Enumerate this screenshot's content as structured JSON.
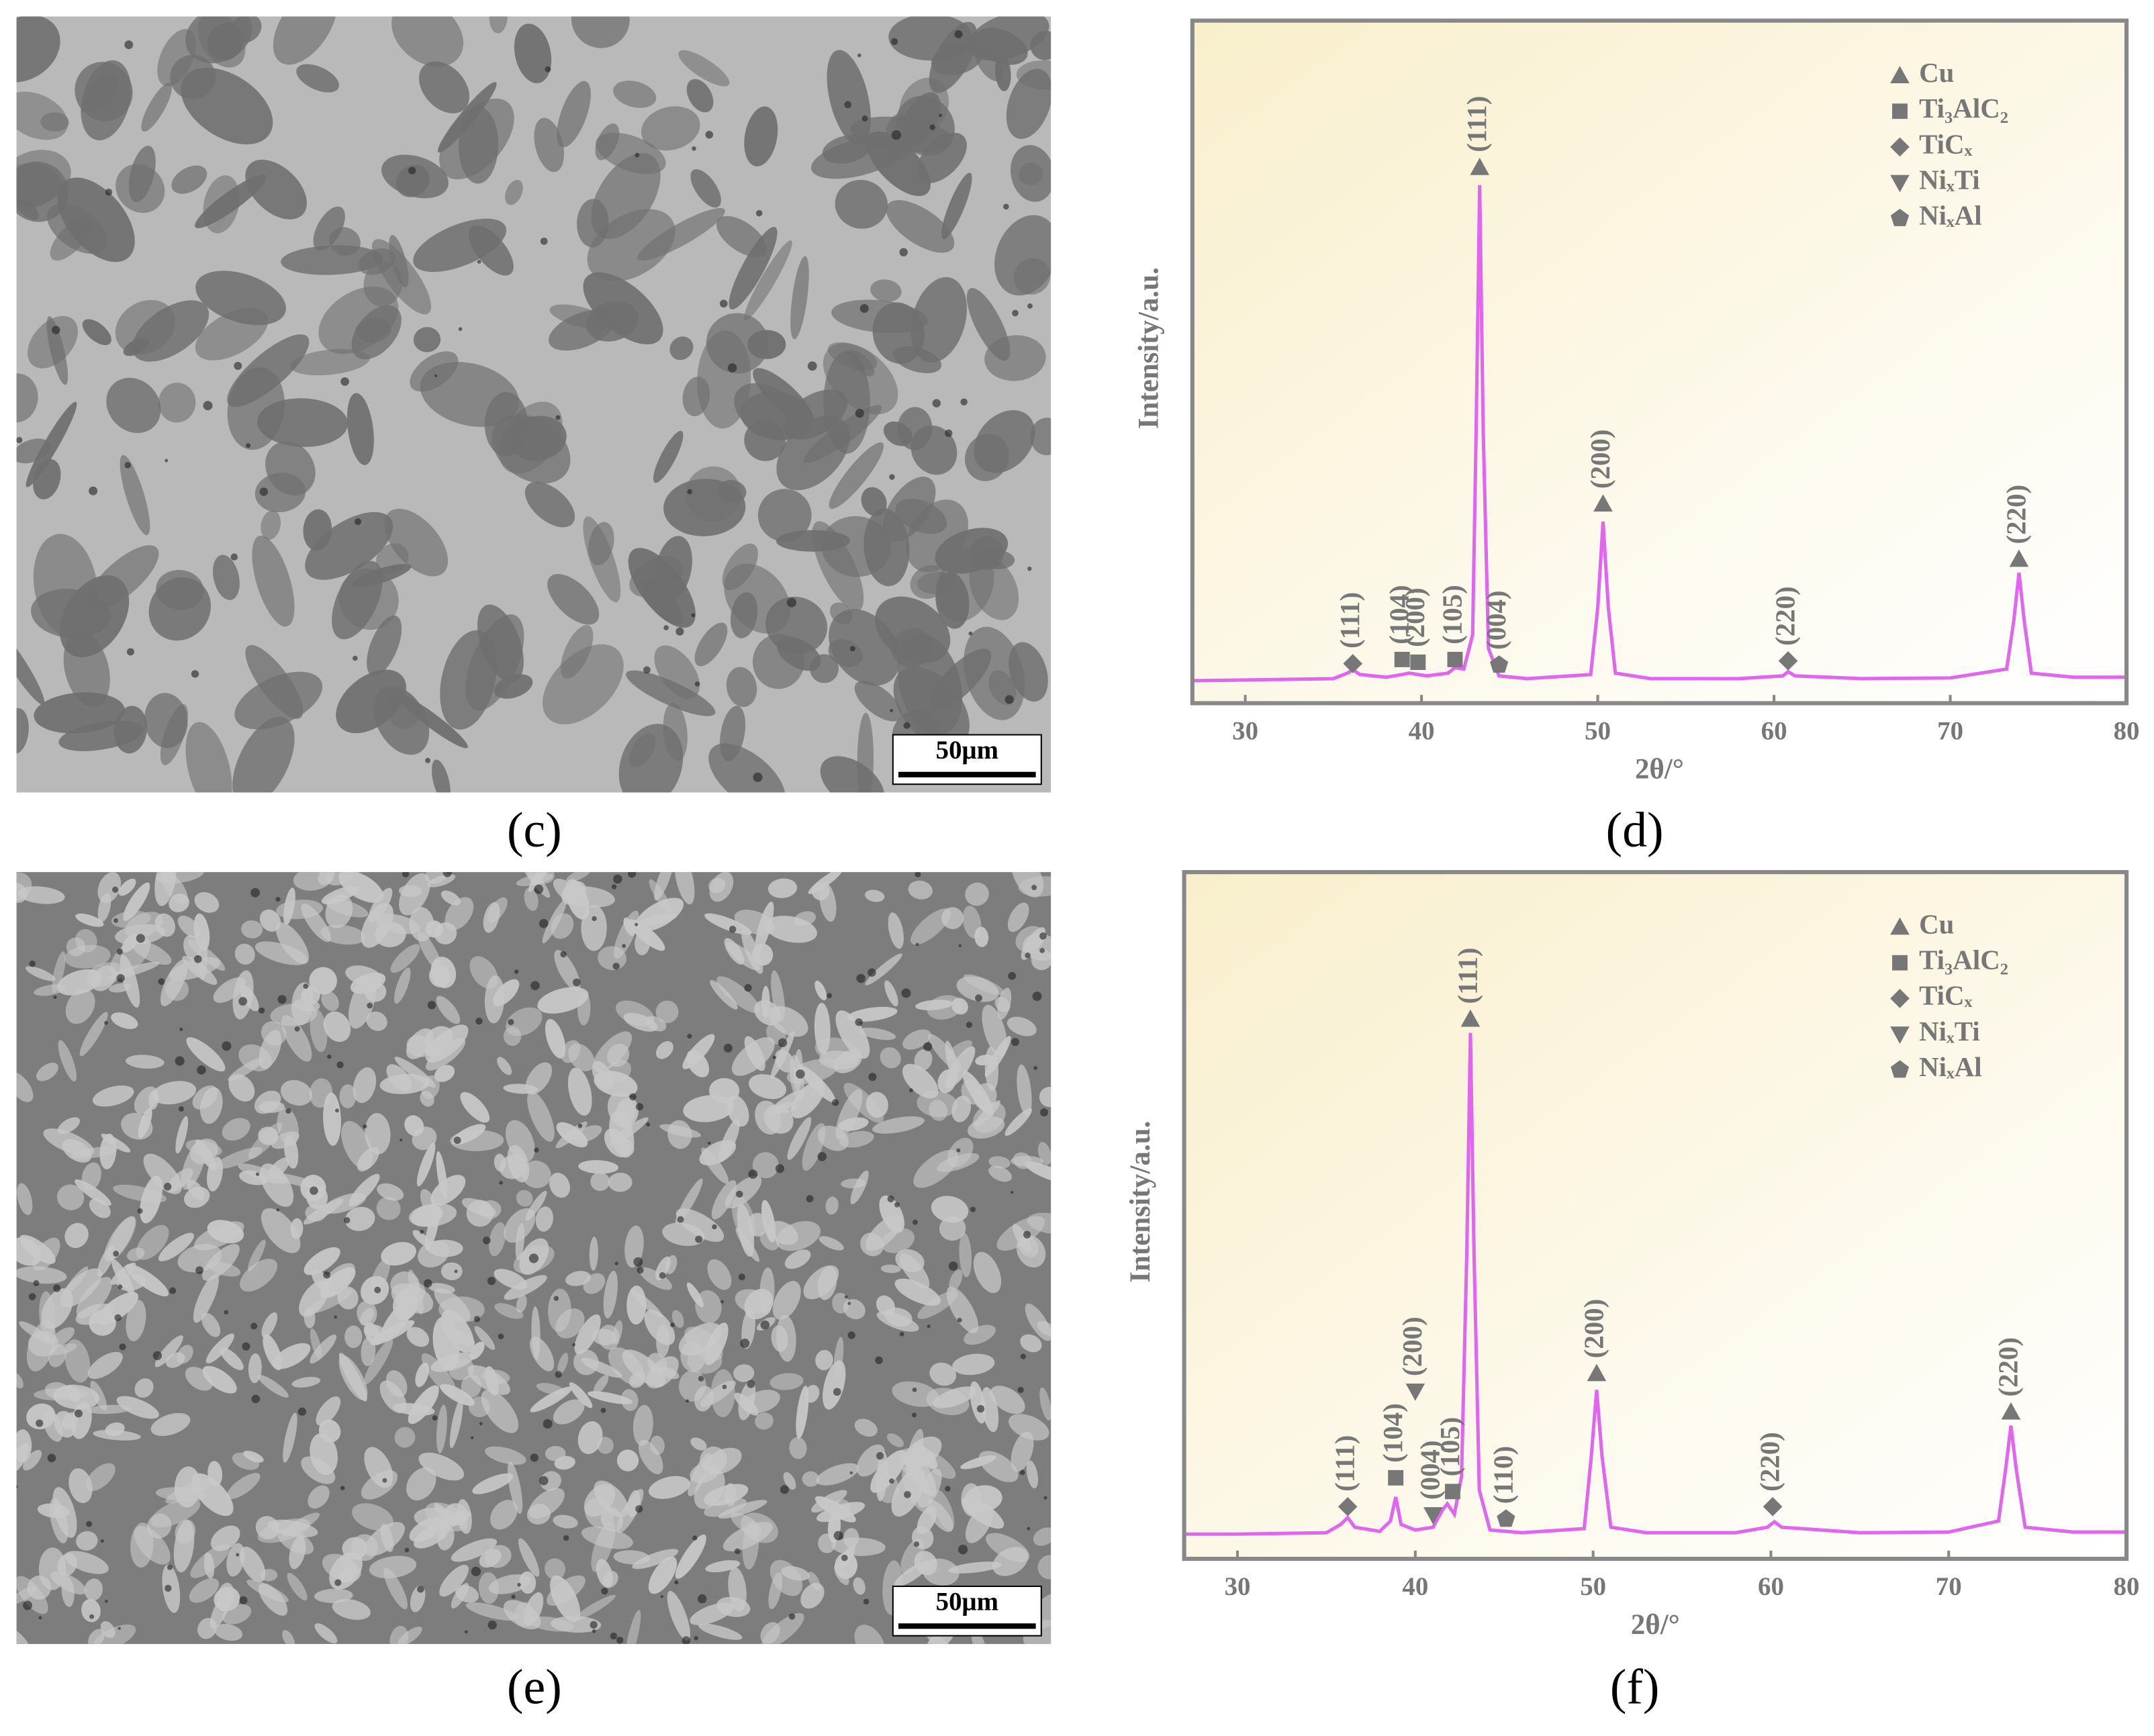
{
  "images": [
    {
      "caption": "(c)",
      "scale_bar": "50μm"
    },
    {
      "caption": "(e)",
      "scale_bar": "50μm"
    }
  ],
  "chart_data": [
    {
      "type": "line",
      "caption": "(d)",
      "xlabel": "2θ/°",
      "ylabel": "Intensity/a.u.",
      "x": [
        27,
        30,
        35,
        35.8,
        36.1,
        36.5,
        38,
        38.9,
        39.3,
        39.8,
        40.3,
        41.5,
        41.9,
        42.4,
        42.9,
        43.1,
        43.3,
        43.5,
        43.8,
        44.4,
        46,
        49.6,
        50,
        50.3,
        50.6,
        51,
        53,
        58,
        60.5,
        60.8,
        61.2,
        65,
        70,
        73.2,
        73.6,
        73.9,
        74.2,
        74.6,
        77,
        80
      ],
      "series": [
        {
          "color": "#e066f0",
          "values": [
            3.3,
            3.4,
            3.6,
            4.4,
            4.9,
            4.2,
            3.8,
            4.2,
            4.4,
            4.2,
            4.0,
            4.4,
            5.2,
            5.0,
            10,
            40,
            75.9,
            40,
            8,
            4.0,
            3.6,
            4.2,
            14,
            26.6,
            14,
            4.4,
            3.6,
            3.6,
            4.0,
            4.6,
            4.0,
            3.6,
            3.7,
            5,
            12,
            19.1,
            12,
            4.4,
            3.8,
            3.8
          ]
        }
      ],
      "xlim": [
        27,
        80
      ],
      "xticks": [
        30,
        40,
        50,
        60,
        70,
        80
      ],
      "ylim": [
        0,
        100
      ],
      "legend_position": "top-right",
      "legend": [
        {
          "name": "Cu",
          "marker": "triangle"
        },
        {
          "name": "Ti₃AlC₂",
          "marker": "square"
        },
        {
          "name": "TiCₓ",
          "marker": "diamond"
        },
        {
          "name": "NiₓTi",
          "marker": "inverted-triangle"
        },
        {
          "name": "NiₓAl",
          "marker": "pentagon"
        }
      ],
      "annotations": [
        {
          "label": "(111)",
          "x": 36.1,
          "y": 5.8,
          "marker": "diamond"
        },
        {
          "label": "(104)",
          "x": 38.9,
          "y": 6.4,
          "marker": "square"
        },
        {
          "label": "(200)",
          "x": 39.8,
          "y": 6.0,
          "marker": "square"
        },
        {
          "label": "(105)",
          "x": 41.9,
          "y": 6.4,
          "marker": "square"
        },
        {
          "label": "(004)",
          "x": 44.4,
          "y": 5.6,
          "marker": "pentagon"
        },
        {
          "label": "(111)",
          "x": 43.3,
          "y": 78.5,
          "marker": "triangle"
        },
        {
          "label": "(200)",
          "x": 50.3,
          "y": 29.2,
          "marker": "triangle"
        },
        {
          "label": "(220)",
          "x": 60.8,
          "y": 6.2,
          "marker": "diamond"
        },
        {
          "label": "(220)",
          "x": 73.9,
          "y": 21.1,
          "marker": "triangle"
        }
      ]
    },
    {
      "type": "line",
      "caption": "(f)",
      "xlabel": "2θ/°",
      "ylabel": "Intensity/a.u.",
      "x": [
        27,
        30,
        35,
        35.8,
        36.2,
        36.6,
        38,
        38.6,
        38.9,
        39.2,
        40,
        41,
        41.5,
        41.8,
        42.2,
        42.6,
        42.9,
        43.1,
        43.3,
        43.6,
        44.2,
        46,
        49.5,
        49.9,
        50.2,
        50.5,
        51,
        53,
        58,
        59.8,
        60.2,
        60.6,
        65,
        70,
        72.8,
        73.2,
        73.5,
        73.8,
        74.3,
        77,
        80
      ],
      "series": [
        {
          "color": "#e066f0",
          "values": [
            3.6,
            3.6,
            3.8,
            5,
            6,
            4.6,
            4.0,
            5.5,
            9,
            5,
            4.2,
            4.6,
            7,
            8,
            6.5,
            12,
            45,
            76.6,
            45,
            10,
            4.2,
            3.8,
            4.4,
            15,
            24.6,
            15,
            4.6,
            3.8,
            3.8,
            4.6,
            5.4,
            4.6,
            3.8,
            3.9,
            5.5,
            13,
            19.4,
            13,
            4.6,
            3.9,
            3.9
          ]
        }
      ],
      "xlim": [
        27,
        80
      ],
      "xticks": [
        30,
        40,
        50,
        60,
        70,
        80
      ],
      "ylim": [
        0,
        100
      ],
      "legend_position": "top-right",
      "legend": [
        {
          "name": "Cu",
          "marker": "triangle"
        },
        {
          "name": "Ti₃AlC₂",
          "marker": "square"
        },
        {
          "name": "TiCₓ",
          "marker": "diamond"
        },
        {
          "name": "NiₓTi",
          "marker": "inverted-triangle"
        },
        {
          "name": "NiₓAl",
          "marker": "pentagon"
        }
      ],
      "annotations": [
        {
          "label": "(111)",
          "x": 36.2,
          "y": 7.6,
          "marker": "diamond"
        },
        {
          "label": "(104)",
          "x": 38.9,
          "y": 11.8,
          "marker": "square"
        },
        {
          "label": "(200)",
          "x": 40.0,
          "y": 24.4,
          "marker": "inverted-triangle"
        },
        {
          "label": "(004)",
          "x": 41.0,
          "y": 6.4,
          "marker": "inverted-triangle"
        },
        {
          "label": "(105)",
          "x": 42.1,
          "y": 9.8,
          "marker": "square"
        },
        {
          "label": "(111)",
          "x": 43.1,
          "y": 78.6,
          "marker": "triangle"
        },
        {
          "label": "(110)",
          "x": 45.1,
          "y": 5.8,
          "marker": "pentagon"
        },
        {
          "label": "(200)",
          "x": 50.2,
          "y": 27,
          "marker": "triangle"
        },
        {
          "label": "(220)",
          "x": 60.1,
          "y": 7.6,
          "marker": "diamond"
        },
        {
          "label": "(220)",
          "x": 73.5,
          "y": 21.4,
          "marker": "triangle"
        }
      ]
    }
  ]
}
